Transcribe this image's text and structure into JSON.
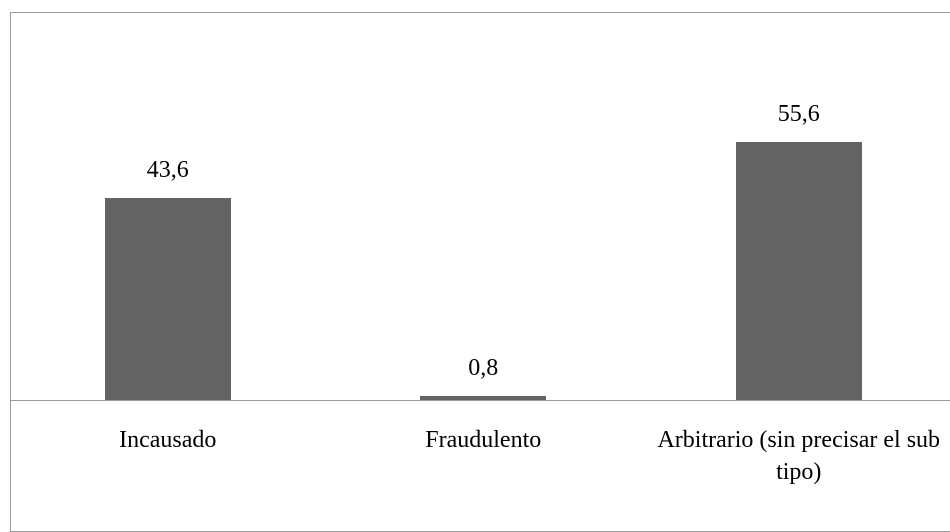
{
  "chart_data": {
    "type": "bar",
    "categories": [
      "Incausado",
      "Fraudulento",
      "Arbitrario (sin precisar el sub tipo)"
    ],
    "values": [
      43.6,
      0.8,
      55.6
    ],
    "value_labels": [
      "43,6",
      "0,8",
      "55,6"
    ],
    "color": "#636363"
  }
}
